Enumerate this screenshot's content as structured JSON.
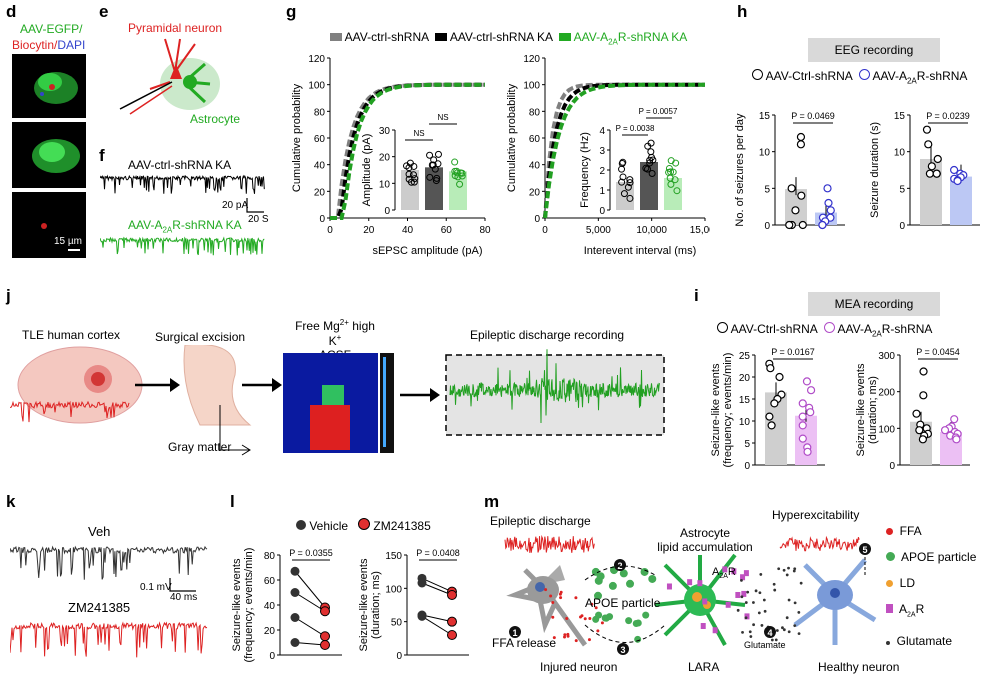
{
  "panels": {
    "d": {
      "label": "d",
      "line1a": "AAV-EGFP/",
      "line2a": "Biocytin/",
      "line2b": "DAPI",
      "scale": "15 µm"
    },
    "e": {
      "label": "e",
      "neuron": "Pyramidal neuron",
      "astro": "Astrocyte"
    },
    "f": {
      "label": "f",
      "trace1": "AAV-ctrl-shRNA KA",
      "trace2a": "AAV-A",
      "trace2sub": "2A",
      "trace2b": "R-shRNA KA",
      "scale_y": "20 pA",
      "scale_x": "20 S"
    },
    "g": {
      "label": "g",
      "legend": [
        {
          "text": "AAV-ctrl-shRNA",
          "color": "#808080"
        },
        {
          "text": "AAV-ctrl-shRNA KA",
          "color": "#000000"
        },
        {
          "text": "AAV-A2AR-shRNA KA",
          "color": "#22a022"
        }
      ],
      "left_ylabel": "Cumulative probability",
      "left_xlabel": "sEPSC amplitude (pA)",
      "left_yticks": [
        "0",
        "20",
        "40",
        "60",
        "80",
        "100",
        "120"
      ],
      "left_xticks": [
        "0",
        "20",
        "40",
        "60",
        "80"
      ],
      "inset_left_ylabel": "Amplitude (pA)",
      "inset_left_yticks": [
        "0",
        "10",
        "20",
        "30"
      ],
      "ns1": "NS",
      "ns2": "NS",
      "right_ylabel": "Cumulative probability",
      "right_xlabel": "Interevent interval (ms)",
      "right_yticks": [
        "0",
        "20",
        "40",
        "60",
        "80",
        "100",
        "120"
      ],
      "right_xticks": [
        "0",
        "5,000",
        "10,000",
        "15,000"
      ],
      "inset_right_ylabel": "Frequency (Hz)",
      "inset_right_yticks": [
        "0",
        "1",
        "2",
        "3",
        "4"
      ],
      "p1": "P = 0.0038",
      "p2": "P = 0.0057"
    },
    "h": {
      "label": "h",
      "title": "EEG recording",
      "legend": [
        {
          "text": "AAV-Ctrl-shRNA",
          "color": "#000000"
        },
        {
          "text": "AAV-A2AR-shRNA",
          "color": "#3333cc"
        }
      ],
      "left_ylabel": "No. of seizures per day",
      "left_yticks": [
        "0",
        "5",
        "10",
        "15"
      ],
      "left_p": "P = 0.0469",
      "right_ylabel": "Seizure duration (s)",
      "right_yticks": [
        "0",
        "5",
        "10",
        "15"
      ],
      "right_p": "P = 0.0239"
    },
    "j": {
      "label": "j",
      "s1": "TLE human cortex",
      "s2": "Surgical excision",
      "s3a": "Free Mg",
      "s3b": " high K",
      "s3c": "ACSF incubation",
      "s4": "Epileptic discharge recording",
      "gray": "Gray matter"
    },
    "i": {
      "label": "i",
      "title": "MEA recording",
      "legend": [
        {
          "text": "AAV-Ctrl-shRNA",
          "color": "#000000"
        },
        {
          "text": "AAV-A2AR-shRNA",
          "color": "#b04cc8"
        }
      ],
      "left_ylabel1": "Seizure-like events",
      "left_ylabel2": "(frequency; events/min)",
      "left_yticks": [
        "0",
        "5",
        "10",
        "15",
        "20",
        "25"
      ],
      "left_p": "P = 0.0167",
      "right_ylabel1": "Seizure-like events",
      "right_ylabel2": "(duration; ms)",
      "right_yticks": [
        "0",
        "100",
        "200",
        "300"
      ],
      "right_p": "P = 0.0454"
    },
    "k": {
      "label": "k",
      "veh": "Veh",
      "zm": "ZM241385",
      "sy": "0.1 mV",
      "sx": "40 ms"
    },
    "l": {
      "label": "l",
      "legend": [
        {
          "text": "Vehicle",
          "color": "#333333"
        },
        {
          "text": "ZM241385",
          "color": "#e03030"
        }
      ],
      "left_ylabel1": "Seizure-like events",
      "left_ylabel2": "(frequency; events/min)",
      "left_yticks": [
        "0",
        "20",
        "40",
        "60",
        "80"
      ],
      "left_p": "P = 0.0355",
      "right_ylabel1": "Seizure-like events",
      "right_ylabel2": "(duration; ms)",
      "right_yticks": [
        "0",
        "50",
        "100",
        "150"
      ],
      "right_p": "P = 0.0408"
    },
    "m": {
      "label": "m",
      "epi": "Epileptic discharge",
      "astro1": "Astrocyte",
      "astro2": "lipid accumulation",
      "hyper": "Hyperexcitability",
      "ffa_rel": "FFA release",
      "apoe": "APOE particle",
      "a2ar": "A",
      "injured": "Injured neuron",
      "lara": "LARA",
      "healthy": "Healthy neuron",
      "glut": "Glutamate",
      "n1": "1",
      "n2": "2",
      "n3": "3",
      "n4": "4",
      "n5": "5",
      "legend": [
        {
          "text": "FFA",
          "color": "#dd2222"
        },
        {
          "text": "APOE particle",
          "color": "#44aa55"
        },
        {
          "text": "LD",
          "color": "#f0a030"
        },
        {
          "text": "A2AR",
          "color": "#c050c0"
        },
        {
          "text": "Glutamate",
          "color": "#333333"
        }
      ]
    }
  },
  "chart_data": [
    {
      "type": "line",
      "panel": "g-left",
      "xlabel": "sEPSC amplitude (pA)",
      "ylabel": "Cumulative probability",
      "xlim": [
        0,
        80
      ],
      "ylim": [
        0,
        120
      ],
      "series": [
        {
          "name": "AAV-ctrl-shRNA"
        },
        {
          "name": "AAV-ctrl-shRNA KA"
        },
        {
          "name": "AAV-A2AR-shRNA KA"
        }
      ]
    },
    {
      "type": "bar",
      "panel": "g-left-inset",
      "ylabel": "Amplitude (pA)",
      "ylim": [
        0,
        30
      ],
      "values": [
        15,
        16,
        14.5
      ]
    },
    {
      "type": "bar",
      "panel": "g-right-inset",
      "ylabel": "Frequency (Hz)",
      "ylim": [
        0,
        4
      ],
      "values": [
        1.4,
        2.4,
        1.6
      ]
    },
    {
      "type": "bar",
      "panel": "h-left",
      "ylabel": "No. of seizures per day",
      "ylim": [
        0,
        15
      ],
      "values": [
        4.9,
        1.7
      ],
      "points": [
        [
          12,
          11,
          5,
          4,
          2,
          0,
          0,
          0
        ],
        [
          5,
          3,
          2,
          1,
          1,
          0.5,
          0,
          0
        ]
      ]
    },
    {
      "type": "bar",
      "panel": "h-right",
      "ylabel": "Seizure duration (s)",
      "ylim": [
        0,
        15
      ],
      "values": [
        9,
        6.6
      ],
      "points": [
        [
          13,
          11,
          9,
          8,
          7,
          7,
          7
        ],
        [
          7.5,
          7,
          6.8,
          6.5,
          6.3,
          6.1,
          6
        ]
      ]
    },
    {
      "type": "bar",
      "panel": "i-left",
      "ylabel": "Seizure-like events (frequency; events/min)",
      "ylim": [
        0,
        25
      ],
      "values": [
        16.5,
        11.2
      ],
      "points": [
        [
          23,
          22,
          20,
          16,
          15,
          14,
          11,
          9
        ],
        [
          19,
          17,
          14,
          13,
          12,
          11,
          9,
          6,
          4,
          3
        ]
      ]
    },
    {
      "type": "bar",
      "panel": "i-right",
      "ylabel": "Seizure-like events (duration; ms)",
      "ylim": [
        0,
        300
      ],
      "values": [
        118,
        90
      ],
      "points": [
        [
          255,
          190,
          140,
          110,
          100,
          95,
          85,
          80,
          70
        ],
        [
          125,
          105,
          100,
          95,
          90,
          85,
          80,
          75,
          70
        ]
      ]
    },
    {
      "type": "line",
      "panel": "l-left",
      "ylabel": "Seizure-like events (frequency; events/min)",
      "ylim": [
        0,
        80
      ],
      "pairs": [
        [
          67,
          38
        ],
        [
          50,
          35
        ],
        [
          30,
          15
        ],
        [
          10,
          8
        ]
      ]
    },
    {
      "type": "line",
      "panel": "l-right",
      "ylabel": "Seizure-like events (duration; ms)",
      "ylim": [
        0,
        150
      ],
      "pairs": [
        [
          115,
          95
        ],
        [
          108,
          90
        ],
        [
          60,
          50
        ],
        [
          58,
          30
        ]
      ]
    }
  ]
}
